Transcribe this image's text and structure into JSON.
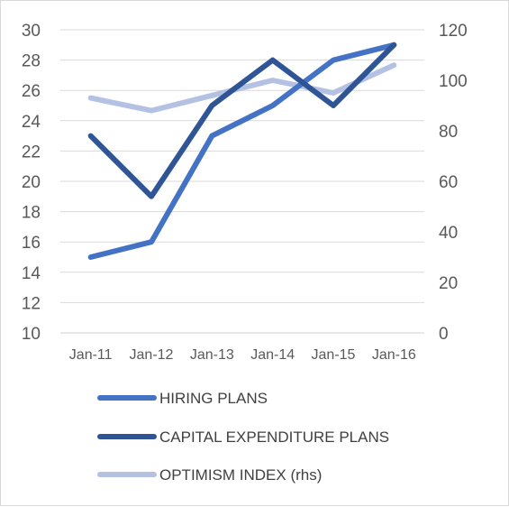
{
  "chart_data": {
    "type": "line",
    "categories": [
      "Jan-11",
      "Jan-12",
      "Jan-13",
      "Jan-14",
      "Jan-15",
      "Jan-16"
    ],
    "y_left": {
      "min": 10,
      "max": 30,
      "step": 2,
      "ticks": [
        "10",
        "12",
        "14",
        "16",
        "18",
        "20",
        "22",
        "24",
        "26",
        "28",
        "30"
      ]
    },
    "y_right": {
      "min": 0,
      "max": 120,
      "step": 20,
      "ticks": [
        "0",
        "20",
        "40",
        "60",
        "80",
        "100",
        "120"
      ]
    },
    "grid": true,
    "legend_position": "bottom",
    "series": [
      {
        "name": "HIRING PLANS",
        "axis": "left",
        "color": "#4472c4",
        "values": [
          15,
          16,
          23,
          25,
          28,
          29
        ]
      },
      {
        "name": "CAPITAL EXPENDITURE PLANS",
        "axis": "left",
        "color": "#2f5597",
        "values": [
          23,
          19,
          25,
          28,
          25,
          29
        ]
      },
      {
        "name": "OPTIMISM INDEX (rhs)",
        "axis": "right",
        "color": "#b4c1e3",
        "values": [
          93,
          88,
          94,
          100,
          95,
          106
        ]
      }
    ]
  }
}
